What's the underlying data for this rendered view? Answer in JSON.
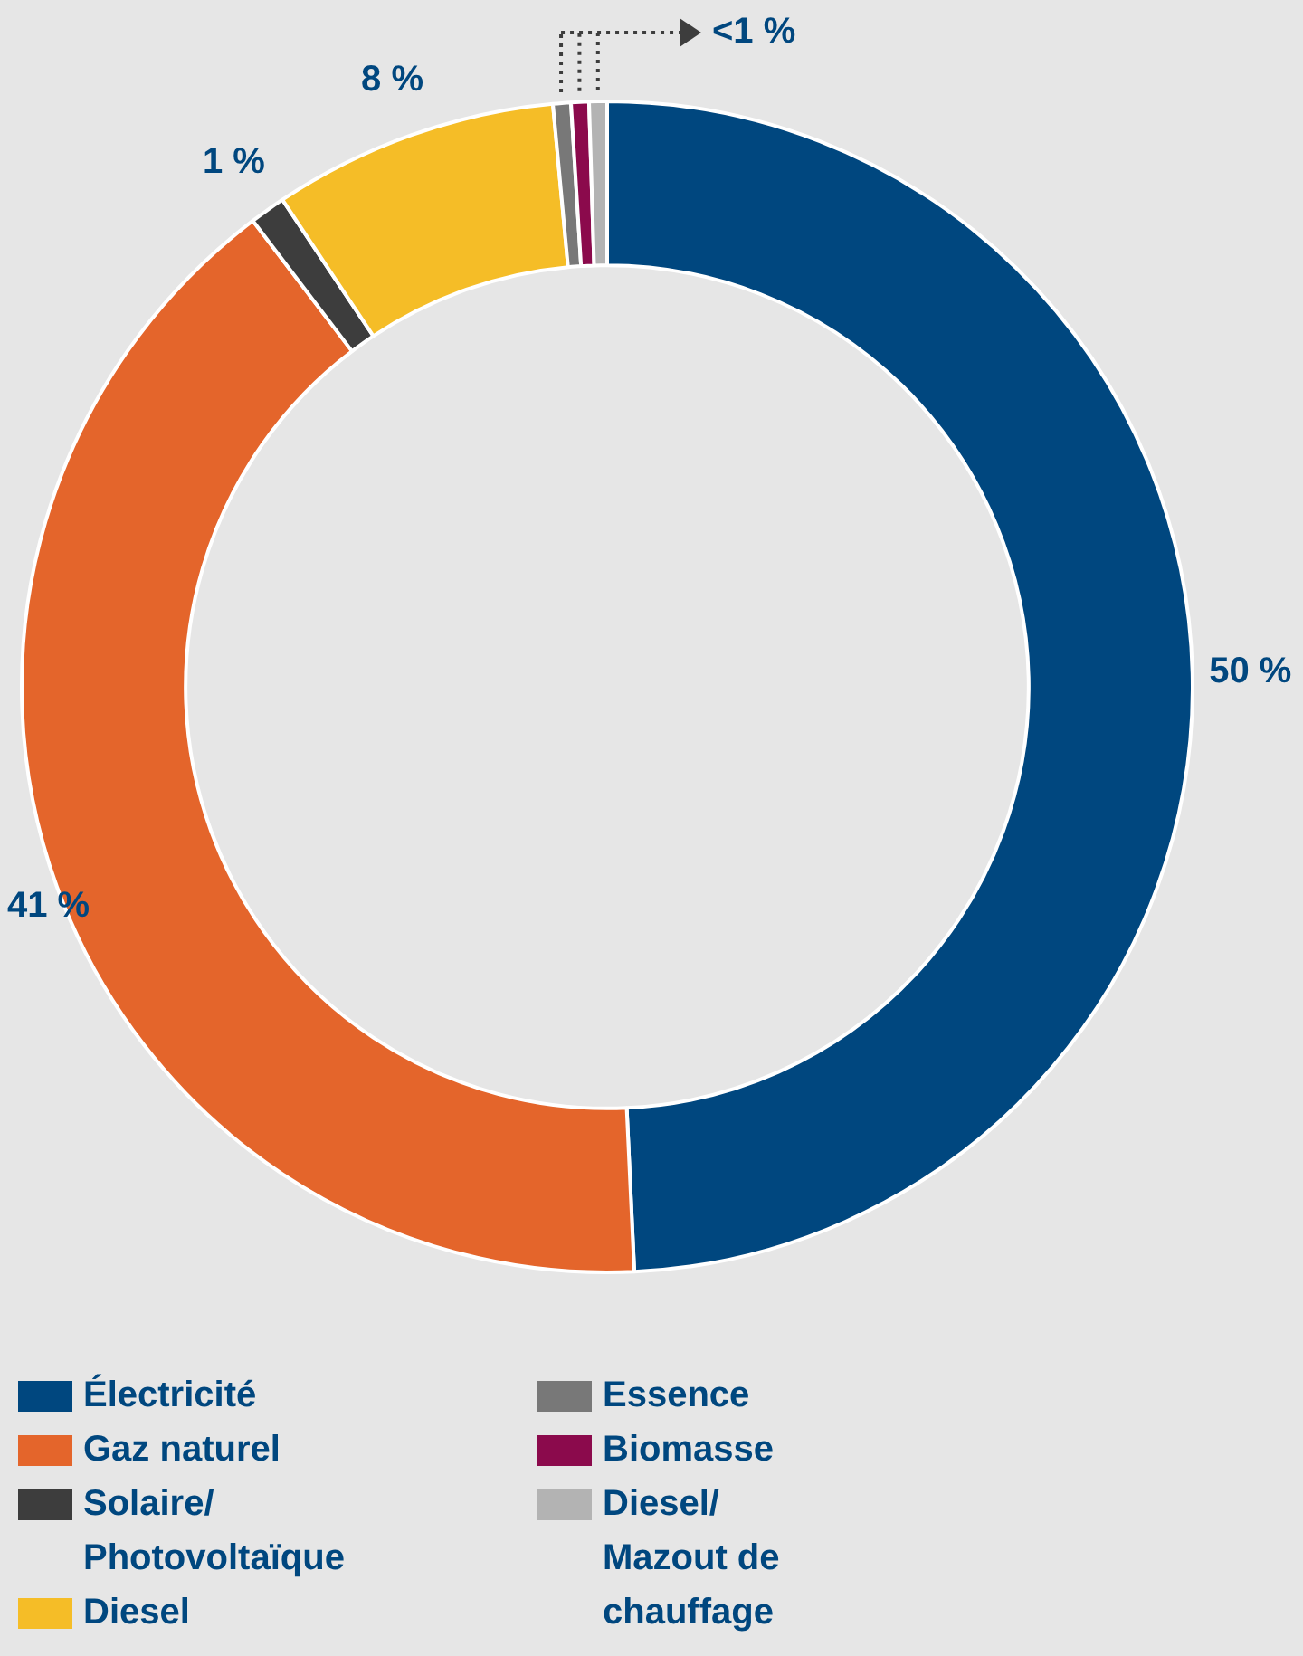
{
  "chart_data": {
    "type": "donut",
    "categories": [
      "Électricité",
      "Gaz naturel",
      "Solaire/Photovoltaïque",
      "Diesel",
      "Essence",
      "Biomasse",
      "Diesel/Mazout de chauffage"
    ],
    "values": [
      50,
      41,
      1,
      8,
      0.5,
      0.5,
      0.5
    ],
    "colors": [
      "#00477f",
      "#e4652b",
      "#3d3d3d",
      "#f5bd27",
      "#787878",
      "#8b0a4c",
      "#b3b3b3"
    ],
    "value_labels": [
      "50 %",
      "41 %",
      "1 %",
      "8 %",
      "<1 %",
      null,
      null
    ],
    "legend": "bottom"
  }
}
